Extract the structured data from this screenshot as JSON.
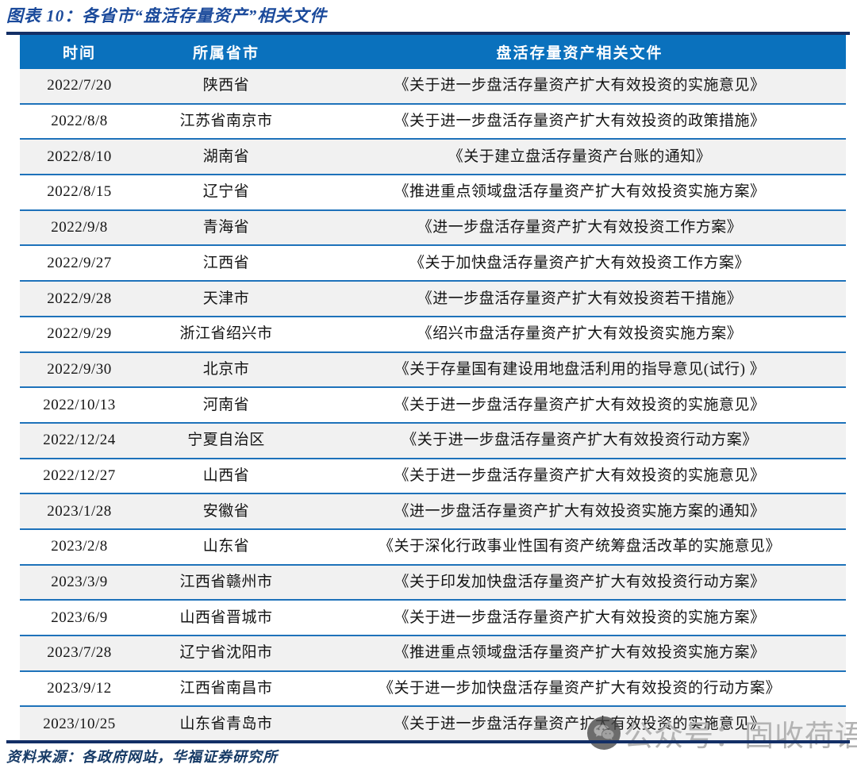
{
  "figure": {
    "title": "图表 10：各省市“盘活存量资产”相关文件",
    "source_note": "资料来源：各政府网站，华福证券研究所"
  },
  "watermark": {
    "icon": "wechat-chat-bubbles",
    "text": "公众号：固收荷语"
  },
  "colors": {
    "title_blue": "#1b4a9b",
    "header_bar_blue": "#0a71bd",
    "rule_navy": "#132f66",
    "row_separator_blue": "#1e72ba",
    "row_alt_gray": "#f1f1f1",
    "source_navy": "#163a66",
    "watermark_gray": "#b3b3b3"
  },
  "table": {
    "headers": [
      "时间",
      "所属省市",
      "盘活存量资产相关文件"
    ],
    "rows": [
      {
        "date": "2022/7/20",
        "region": "陕西省",
        "document": "《关于进一步盘活存量资产扩大有效投资的实施意见》"
      },
      {
        "date": "2022/8/8",
        "region": "江苏省南京市",
        "document": "《关于进一步盘活存量资产扩大有效投资的政策措施》"
      },
      {
        "date": "2022/8/10",
        "region": "湖南省",
        "document": "《关于建立盘活存量资产台账的通知》"
      },
      {
        "date": "2022/8/15",
        "region": "辽宁省",
        "document": "《推进重点领域盘活存量资产扩大有效投资实施方案》"
      },
      {
        "date": "2022/9/8",
        "region": "青海省",
        "document": "《进一步盘活存量资产扩大有效投资工作方案》"
      },
      {
        "date": "2022/9/27",
        "region": "江西省",
        "document": "《关于加快盘活存量资产扩大有效投资工作方案》"
      },
      {
        "date": "2022/9/28",
        "region": "天津市",
        "document": "《进一步盘活存量资产扩大有效投资若干措施》"
      },
      {
        "date": "2022/9/29",
        "region": "浙江省绍兴市",
        "document": "《绍兴市盘活存量资产扩大有效投资实施方案》"
      },
      {
        "date": "2022/9/30",
        "region": "北京市",
        "document": "《关于存量国有建设用地盘活利用的指导意见(试行) 》"
      },
      {
        "date": "2022/10/13",
        "region": "河南省",
        "document": "《关于进一步盘活存量资产扩大有效投资的实施意见》"
      },
      {
        "date": "2022/12/24",
        "region": "宁夏自治区",
        "document": "《关于进一步盘活存量资产扩大有效投资行动方案》"
      },
      {
        "date": "2022/12/27",
        "region": "山西省",
        "document": "《关于进一步盘活存量资产扩大有效投资的实施意见》"
      },
      {
        "date": "2023/1/28",
        "region": "安徽省",
        "document": "《进一步盘活存量资产扩大有效投资实施方案的通知》"
      },
      {
        "date": "2023/2/8",
        "region": "山东省",
        "document": "《关于深化行政事业性国有资产统筹盘活改革的实施意见》"
      },
      {
        "date": "2023/3/9",
        "region": "江西省赣州市",
        "document": "《关于印发加快盘活存量资产扩大有效投资行动方案》"
      },
      {
        "date": "2023/6/9",
        "region": "山西省晋城市",
        "document": "《关于进一步盘活存量资产扩大有效投资的实施方案》"
      },
      {
        "date": "2023/7/28",
        "region": "辽宁省沈阳市",
        "document": "《推进重点领域盘活存量资产扩大有效投资实施方案》"
      },
      {
        "date": "2023/9/12",
        "region": "江西省南昌市",
        "document": "《关于进一步加快盘活存量资产扩大有效投资的行动方案》"
      },
      {
        "date": "2023/10/25",
        "region": "山东省青岛市",
        "document": "《关于进一步盘活存量资产扩大有效投资的实施意见》"
      }
    ]
  }
}
